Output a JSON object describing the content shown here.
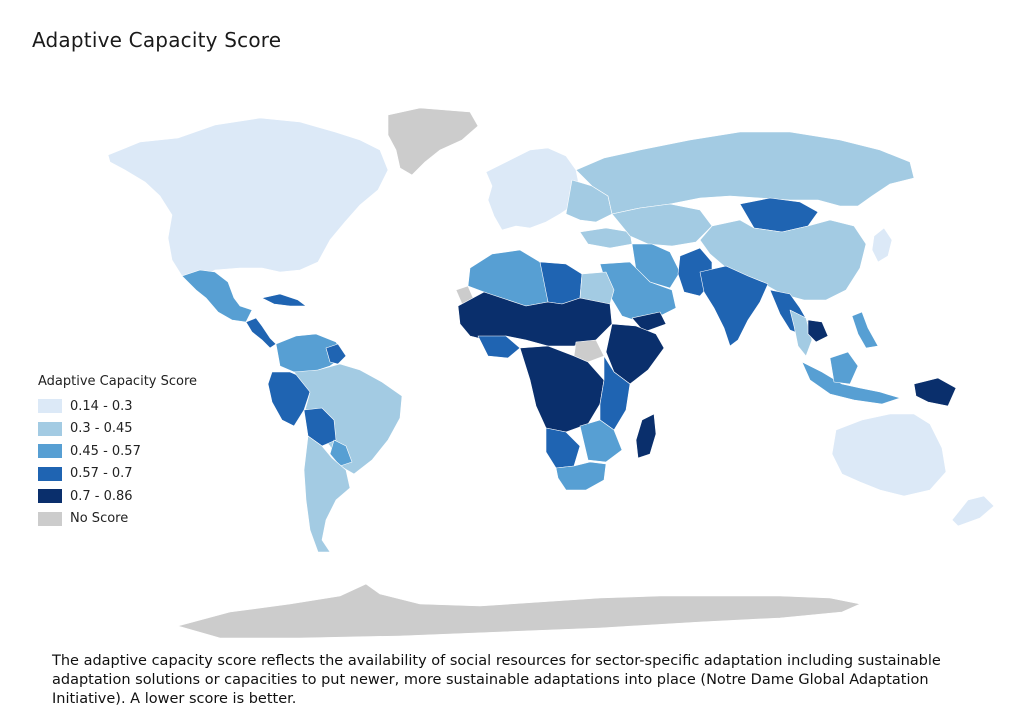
{
  "title": "Adaptive Capacity Score",
  "legend": {
    "title": "Adaptive Capacity Score",
    "items": [
      {
        "label": "0.14 - 0.3",
        "color": "#dce9f7"
      },
      {
        "label": "0.3 - 0.45",
        "color": "#a3cbe3"
      },
      {
        "label": "0.45 - 0.57",
        "color": "#579fd3"
      },
      {
        "label": "0.57 - 0.7",
        "color": "#1f64b2"
      },
      {
        "label": "0.7 - 0.86",
        "color": "#0a2f6c"
      },
      {
        "label": "No Score",
        "color": "#cccccc"
      }
    ]
  },
  "caption": "The adaptive capacity score reflects the availability of social resources for sector-specific adaptation including sustainable adaptation solutions or capacities to put newer, more sustainable adaptations into place (Notre Dame Global Adaptation Initiative). A lower score is better."
}
